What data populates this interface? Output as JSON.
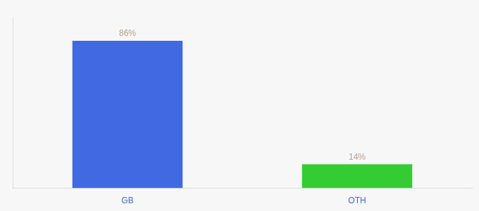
{
  "chart_data": {
    "type": "bar",
    "categories": [
      "GB",
      "OTH"
    ],
    "values": [
      86,
      14
    ],
    "value_labels": [
      "86%",
      "14%"
    ],
    "colors": [
      "#4169e1",
      "#33cc33"
    ],
    "ylim": [
      0,
      100
    ],
    "grid": false,
    "data_labels": true,
    "tick_labels": "x"
  }
}
